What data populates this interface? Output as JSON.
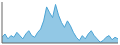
{
  "chart_data": {
    "type": "area",
    "values": [
      18,
      22,
      16,
      20,
      18,
      24,
      20,
      16,
      22,
      26,
      20,
      18,
      24,
      28,
      38,
      55,
      48,
      42,
      58,
      45,
      36,
      30,
      38,
      32,
      24,
      18,
      14,
      20,
      16,
      22,
      26,
      20,
      16,
      12,
      14,
      18,
      20,
      15,
      18,
      16
    ],
    "color": "#4aa3d4",
    "xlim": [
      0,
      39
    ],
    "ylim": [
      11,
      61
    ],
    "tick_labels": false
  }
}
